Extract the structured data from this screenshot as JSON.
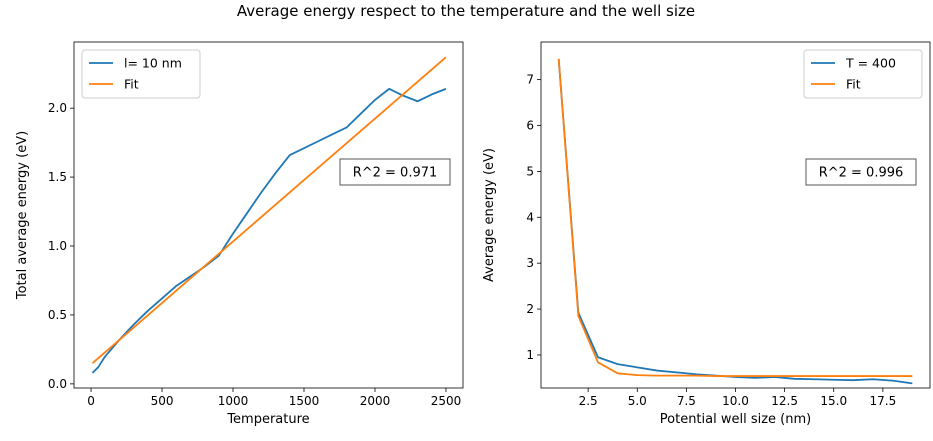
{
  "suptitle": "Average energy respect to the temperature and the well size",
  "chart_data": [
    {
      "type": "line",
      "xlabel": "Temperature",
      "ylabel": "Total average energy (eV)",
      "xlim": [
        -120,
        2620
      ],
      "ylim": [
        -0.03,
        2.48
      ],
      "xticks": [
        0,
        500,
        1000,
        1500,
        2000,
        2500
      ],
      "xtick_labels": [
        "0",
        "500",
        "1000",
        "1500",
        "2000",
        "2500"
      ],
      "yticks": [
        0.0,
        0.5,
        1.0,
        1.5,
        2.0
      ],
      "ytick_labels": [
        "0.0",
        "0.5",
        "1.0",
        "1.5",
        "2.0"
      ],
      "legend_position": "upper-left",
      "annotation": "R^2 = 0.971",
      "series": [
        {
          "name": "l= 10 nm",
          "color": "#1f77b4",
          "x": [
            10,
            50,
            100,
            200,
            300,
            400,
            500,
            600,
            700,
            800,
            900,
            1000,
            1100,
            1200,
            1300,
            1400,
            1500,
            1600,
            1700,
            1800,
            1900,
            2000,
            2100,
            2200,
            2300,
            2400,
            2500
          ],
          "y": [
            0.08,
            0.12,
            0.2,
            0.32,
            0.43,
            0.53,
            0.62,
            0.71,
            0.78,
            0.85,
            0.93,
            1.09,
            1.24,
            1.39,
            1.53,
            1.66,
            1.71,
            1.76,
            1.81,
            1.86,
            1.96,
            2.06,
            2.14,
            2.09,
            2.05,
            2.1,
            2.14
          ]
        },
        {
          "name": "Fit",
          "color": "#ff7f0e",
          "x": [
            10,
            2500
          ],
          "y": [
            0.15,
            2.37
          ]
        }
      ]
    },
    {
      "type": "line",
      "xlabel": "Potential well size (nm)",
      "ylabel": "Average energy (eV)",
      "xlim": [
        0.1,
        19.9
      ],
      "ylim": [
        0.28,
        7.82
      ],
      "xticks": [
        2.5,
        5.0,
        7.5,
        10.0,
        12.5,
        15.0,
        17.5
      ],
      "xtick_labels": [
        "2.5",
        "5.0",
        "7.5",
        "10.0",
        "12.5",
        "15.0",
        "17.5"
      ],
      "yticks": [
        1,
        2,
        3,
        4,
        5,
        6,
        7
      ],
      "ytick_labels": [
        "1",
        "2",
        "3",
        "4",
        "5",
        "6",
        "7"
      ],
      "legend_position": "upper-right",
      "annotation": "R^2 = 0.996",
      "series": [
        {
          "name": "T = 400",
          "color": "#1f77b4",
          "x": [
            1,
            2,
            3,
            4,
            5,
            6,
            7,
            8,
            9,
            10,
            11,
            12,
            13,
            14,
            15,
            16,
            17,
            18,
            19
          ],
          "y": [
            7.45,
            1.92,
            0.95,
            0.8,
            0.73,
            0.66,
            0.62,
            0.58,
            0.55,
            0.52,
            0.5,
            0.52,
            0.48,
            0.47,
            0.46,
            0.45,
            0.47,
            0.44,
            0.38
          ]
        },
        {
          "name": "Fit",
          "color": "#ff7f0e",
          "x": [
            1,
            2,
            3,
            4,
            5,
            6,
            7,
            8,
            9,
            10,
            11,
            12,
            13,
            14,
            15,
            16,
            17,
            18,
            19
          ],
          "y": [
            7.45,
            1.85,
            0.84,
            0.6,
            0.56,
            0.55,
            0.55,
            0.55,
            0.54,
            0.54,
            0.54,
            0.54,
            0.54,
            0.54,
            0.54,
            0.54,
            0.54,
            0.54,
            0.54
          ]
        }
      ]
    }
  ]
}
